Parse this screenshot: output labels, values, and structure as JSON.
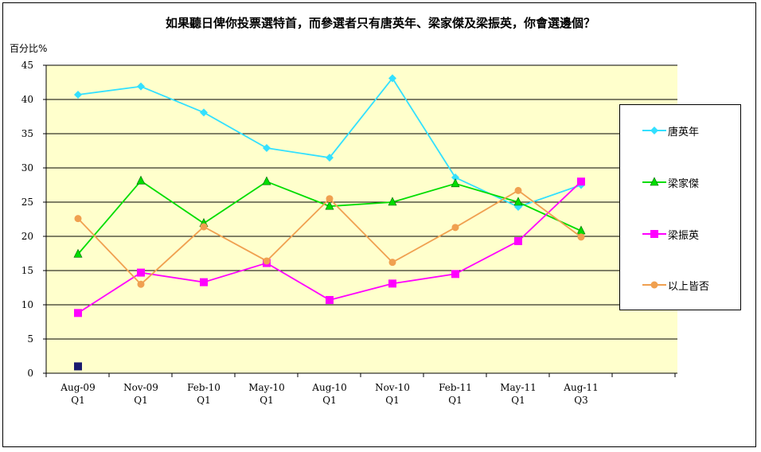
{
  "chart_data": {
    "type": "line",
    "title": "如果聽日俾你投票選特首，而參選者只有唐英年、梁家傑及梁振英，你會選邊個？",
    "ylabel": "百分比%",
    "xlabel": "",
    "ylim": [
      0,
      45
    ],
    "yticks": [
      "0",
      "5",
      "10",
      "15",
      "20",
      "25",
      "30",
      "35",
      "40",
      "45"
    ],
    "categories": [
      [
        "Aug-09",
        "Q1"
      ],
      [
        "Nov-09",
        "Q1"
      ],
      [
        "Feb-10",
        "Q1"
      ],
      [
        "May-10",
        "Q1"
      ],
      [
        "Aug-10",
        "Q1"
      ],
      [
        "Nov-10",
        "Q1"
      ],
      [
        "Feb-11",
        "Q1"
      ],
      [
        "May-11",
        "Q1"
      ],
      [
        "Aug-11",
        "Q3"
      ]
    ],
    "grid": true,
    "legend_position": "right",
    "series": [
      {
        "name": "唐英年",
        "color": "#33e0ff",
        "marker": "diamond",
        "values": [
          40.7,
          41.9,
          38.1,
          32.9,
          31.5,
          43.1,
          28.6,
          24.3,
          27.5
        ]
      },
      {
        "name": "梁家傑",
        "color": "#00dd00",
        "marker": "triangle",
        "values": [
          17.4,
          28.1,
          21.9,
          28.0,
          24.4,
          25.0,
          27.7,
          25.0,
          20.8
        ]
      },
      {
        "name": "梁振英",
        "color": "#ff00ff",
        "marker": "square",
        "values": [
          8.8,
          14.7,
          13.3,
          16.1,
          10.7,
          13.1,
          14.5,
          19.3,
          28.0
        ]
      },
      {
        "name": "以上皆否",
        "color": "#f0a050",
        "marker": "circle",
        "values": [
          22.6,
          13.0,
          21.4,
          16.4,
          25.5,
          16.2,
          21.3,
          26.7,
          19.9
        ]
      }
    ],
    "stray_marker": {
      "x_index": 0,
      "value": 1.0,
      "color": "#1a1a6e"
    }
  }
}
